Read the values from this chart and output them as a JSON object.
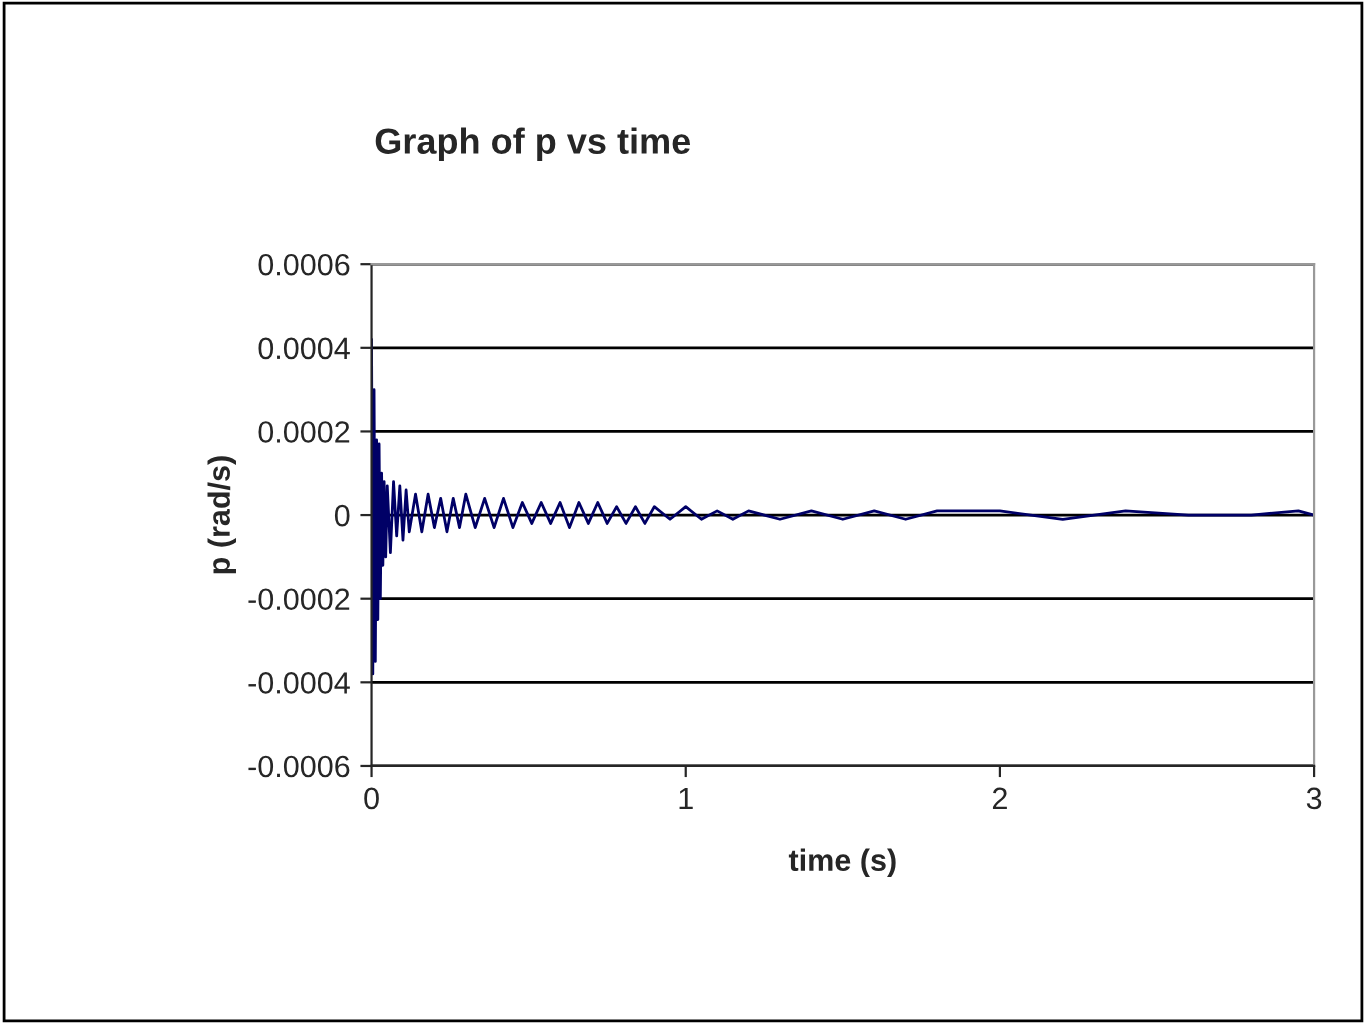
{
  "chart_data": {
    "type": "line",
    "title": "Graph of p vs time",
    "xlabel": "time (s)",
    "ylabel": "p (rad/s)",
    "series": [
      {
        "color": "#000066",
        "x": [
          0,
          0.004,
          0.008,
          0.012,
          0.016,
          0.02,
          0.024,
          0.028,
          0.032,
          0.036,
          0.04,
          0.045,
          0.05,
          0.06,
          0.07,
          0.08,
          0.09,
          0.1,
          0.11,
          0.12,
          0.14,
          0.16,
          0.18,
          0.2,
          0.22,
          0.24,
          0.26,
          0.28,
          0.3,
          0.33,
          0.36,
          0.39,
          0.42,
          0.45,
          0.48,
          0.51,
          0.54,
          0.57,
          0.6,
          0.63,
          0.66,
          0.69,
          0.72,
          0.75,
          0.78,
          0.81,
          0.84,
          0.87,
          0.9,
          0.95,
          1.0,
          1.05,
          1.1,
          1.15,
          1.2,
          1.3,
          1.4,
          1.5,
          1.6,
          1.7,
          1.8,
          2.0,
          2.2,
          2.4,
          2.6,
          2.8,
          2.95,
          3.0
        ],
        "values": [
          0.00042,
          -0.00038,
          0.0003,
          -0.00035,
          0.00018,
          -0.00025,
          0.00017,
          -0.0002,
          0.0001,
          -0.00012,
          8e-05,
          -0.0001,
          7e-05,
          -9e-05,
          8e-05,
          -5e-05,
          7e-05,
          -6e-05,
          6e-05,
          -4e-05,
          5e-05,
          -4e-05,
          5e-05,
          -3e-05,
          4e-05,
          -4e-05,
          4e-05,
          -3e-05,
          5e-05,
          -3e-05,
          4e-05,
          -3e-05,
          4e-05,
          -3e-05,
          3e-05,
          -2e-05,
          3e-05,
          -2e-05,
          3e-05,
          -3e-05,
          3e-05,
          -2e-05,
          3e-05,
          -2e-05,
          2e-05,
          -2e-05,
          2e-05,
          -2e-05,
          2e-05,
          -1e-05,
          2e-05,
          -1e-05,
          1e-05,
          -1e-05,
          1e-05,
          -1e-05,
          1e-05,
          -1e-05,
          1e-05,
          -1e-05,
          1e-05,
          1e-05,
          -1e-05,
          1e-05,
          0,
          0,
          1e-05,
          0
        ]
      }
    ],
    "xlim": [
      0,
      3
    ],
    "xticks": [
      0,
      1,
      2,
      3
    ],
    "ylim": [
      -0.0006,
      0.0006
    ],
    "yticks": [
      {
        "value": -0.0006,
        "label": "-0.0006"
      },
      {
        "value": -0.0004,
        "label": "-0.0004"
      },
      {
        "value": -0.0002,
        "label": "-0.0002"
      },
      0,
      {
        "value": 0.0002,
        "label": "0.0002"
      },
      {
        "value": 0.0004,
        "label": "0.0004"
      },
      {
        "value": 0.0006,
        "label": "0.0006"
      }
    ],
    "grid": "y",
    "line_style": "solid"
  }
}
